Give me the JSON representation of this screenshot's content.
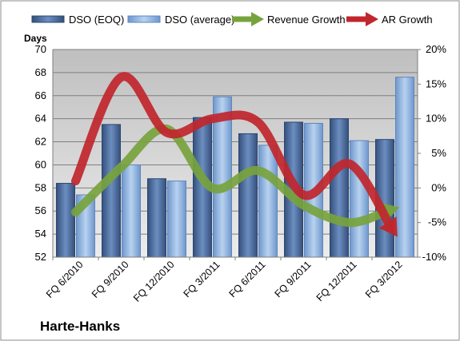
{
  "company": "Harte-Hanks",
  "chart_data": {
    "type": "bar+line",
    "categories": [
      "FQ 6/2010",
      "FQ 9/2010",
      "FQ 12/2010",
      "FQ 3/2011",
      "FQ 6/2011",
      "FQ 9/2011",
      "FQ 12/2011",
      "FQ 3/2012"
    ],
    "y_left": {
      "label": "Days",
      "min": 52,
      "max": 70,
      "ticks": [
        "52",
        "54",
        "56",
        "58",
        "60",
        "62",
        "64",
        "66",
        "68",
        "70"
      ]
    },
    "y_right": {
      "min": -10,
      "max": 20,
      "ticks": [
        "-10%",
        "-5%",
        "0%",
        "5%",
        "10%",
        "15%",
        "20%"
      ]
    },
    "bar_series": [
      {
        "name": "DSO (EOQ)",
        "color": "#4a6b9c",
        "values": [
          58.4,
          63.5,
          58.8,
          64.1,
          62.7,
          63.7,
          64.0,
          62.2
        ]
      },
      {
        "name": "DSO (average)",
        "color": "#8db3e2",
        "values": [
          57.4,
          60.0,
          58.6,
          65.9,
          61.7,
          63.6,
          62.1,
          67.6
        ]
      }
    ],
    "line_series": [
      {
        "name": "Revenue Growth",
        "color": "#77a33d",
        "values": [
          -3.5,
          3.0,
          8.5,
          0.0,
          2.5,
          -2.5,
          -5.0,
          -3.0
        ]
      },
      {
        "name": "AR Growth",
        "color": "#c0262c",
        "values": [
          1.0,
          16.0,
          8.0,
          10.0,
          9.5,
          -1.0,
          3.5,
          -6.5
        ]
      }
    ],
    "legend_position": "top",
    "grid": true
  }
}
